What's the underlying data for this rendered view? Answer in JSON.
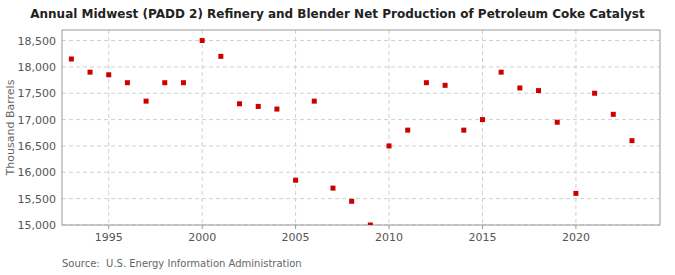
{
  "chart_data": {
    "type": "scatter",
    "title": "Annual Midwest (PADD 2) Refinery and Blender Net Production of Petroleum Coke Catalyst",
    "y_label": "Thousand Barrels",
    "annotations": [
      "Source:  U.S. Energy Information Administration"
    ],
    "x": [
      1993,
      1994,
      1995,
      1996,
      1997,
      1998,
      1999,
      2000,
      2001,
      2002,
      2003,
      2004,
      2005,
      2006,
      2007,
      2008,
      2009,
      2010,
      2011,
      2012,
      2013,
      2014,
      2015,
      2016,
      2017,
      2018,
      2019,
      2020,
      2021,
      2022,
      2023
    ],
    "values": [
      18150,
      17900,
      17850,
      17700,
      17350,
      17700,
      17700,
      18500,
      18200,
      17300,
      17250,
      17200,
      15850,
      17350,
      15700,
      15450,
      15000,
      16500,
      16800,
      17700,
      17650,
      16800,
      17000,
      17900,
      17600,
      17550,
      16950,
      15600,
      17500,
      17100,
      16600
    ],
    "color": "#cc0000",
    "marker": "square",
    "grid": true,
    "xlim": [
      1992.5,
      2024.5
    ],
    "xticks": [
      1995,
      2000,
      2005,
      2010,
      2015,
      2020
    ],
    "ylim": [
      15000,
      18700
    ],
    "yticks": [
      {
        "value": 15000,
        "label": "15,000"
      },
      {
        "value": 15500,
        "label": "15,500"
      },
      {
        "value": 16000,
        "label": "16,000"
      },
      {
        "value": 16500,
        "label": "16,500"
      },
      {
        "value": 17000,
        "label": "17,000"
      },
      {
        "value": 17500,
        "label": "17,500"
      },
      {
        "value": 18000,
        "label": "18,000"
      },
      {
        "value": 18500,
        "label": "18,500"
      }
    ]
  }
}
